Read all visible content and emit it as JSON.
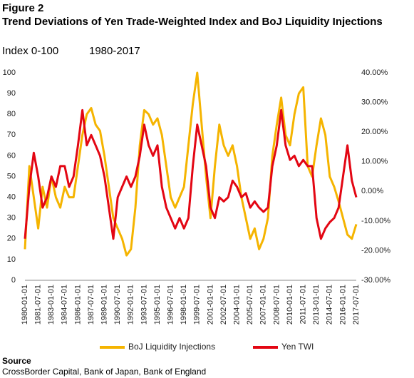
{
  "chart_data": {
    "type": "line",
    "figure_label": "Figure 2",
    "title": "Trend Deviations of Yen Trade-Weighted Index and BoJ Liquidity Injections",
    "y_label": "Index 0-100",
    "subtitle": "1980-2017",
    "categories": [
      "1980-01-01",
      null,
      null,
      "1981-07-01",
      null,
      null,
      "1983-01-01",
      null,
      null,
      "1984-07-01",
      null,
      null,
      "1986-01-01",
      null,
      null,
      "1987-07-01",
      null,
      null,
      "1989-01-01",
      null,
      null,
      "1990-07-01",
      null,
      null,
      "1992-01-01",
      null,
      null,
      "1993-07-01",
      null,
      null,
      "1995-01-01",
      null,
      null,
      "1996-07-01",
      null,
      null,
      "1998-01-01",
      null,
      null,
      "1999-07-01",
      null,
      null,
      "2001-01-01",
      null,
      null,
      "2002-07-01",
      null,
      null,
      "2004-01-01",
      null,
      null,
      "2005-07-01",
      null,
      null,
      "2007-01-01",
      null,
      null,
      "2008-07-01",
      null,
      null,
      "2010-01-01",
      null,
      null,
      "2011-07-01",
      null,
      null,
      "2013-01-01",
      null,
      null,
      "2014-07-01",
      null,
      null,
      "2016-01-01",
      null,
      null,
      "2017-07-01"
    ],
    "series": [
      {
        "name": "BoJ Liquidity Injections",
        "color": "#f5b400",
        "values": [
          15,
          55,
          40,
          25,
          45,
          35,
          50,
          40,
          35,
          45,
          40,
          40,
          55,
          70,
          80,
          83,
          75,
          72,
          60,
          45,
          30,
          25,
          20,
          12,
          15,
          35,
          65,
          82,
          80,
          75,
          78,
          70,
          55,
          40,
          35,
          40,
          45,
          65,
          85,
          100,
          75,
          50,
          30,
          55,
          75,
          65,
          60,
          65,
          55,
          40,
          30,
          20,
          25,
          15,
          20,
          30,
          60,
          75,
          88,
          70,
          65,
          80,
          90,
          93,
          55,
          50,
          65,
          78,
          70,
          50,
          45,
          38,
          30,
          22,
          20,
          27
        ]
      },
      {
        "name": "Yen TWI",
        "color": "#e30613",
        "axis": "y2",
        "values": [
          -16,
          1.5,
          13,
          5,
          -5.5,
          -2,
          5,
          1.5,
          8.5,
          8.5,
          1.5,
          5,
          15.5,
          27.4,
          15.5,
          19,
          15.5,
          12,
          5,
          -5.5,
          -16,
          -2,
          1.5,
          5,
          1.5,
          5,
          12,
          22.5,
          15.5,
          12,
          15.5,
          1.5,
          -5.5,
          -9,
          -12.5,
          -9,
          -12.5,
          -9,
          8.5,
          22.5,
          15.5,
          8.5,
          -5.5,
          -9,
          -2,
          -3.4,
          -2,
          3.6,
          1.5,
          -2,
          -0.6,
          -5.5,
          -3.4,
          -5.5,
          -6.9,
          -5.5,
          8.5,
          15.5,
          27.4,
          15.5,
          10.6,
          12,
          8.5,
          10.6,
          8.5,
          8.5,
          -9,
          -16,
          -12.5,
          -10.4,
          -9,
          -5.5,
          5,
          15.5,
          3.6,
          -2
        ]
      }
    ],
    "ylim": [
      0,
      100
    ],
    "yticks": [
      0,
      10,
      20,
      30,
      40,
      50,
      60,
      70,
      80,
      90,
      100
    ],
    "y2lim": [
      -30,
      40
    ],
    "y2ticks": [
      {
        "value": 40,
        "label": "40.00%"
      },
      {
        "value": 30,
        "label": "30.00%"
      },
      {
        "value": 20,
        "label": "20.00%"
      },
      {
        "value": 10,
        "label": "10.00%"
      },
      {
        "value": 0,
        "label": "0.00%"
      },
      {
        "value": -10,
        "label": "-10.00%"
      },
      {
        "value": -20,
        "label": "-20.00%"
      },
      {
        "value": -30,
        "label": "-30.00%"
      }
    ],
    "source_label": "Source",
    "source": "CrossBorder Capital, Bank of Japan, Bank of England"
  }
}
